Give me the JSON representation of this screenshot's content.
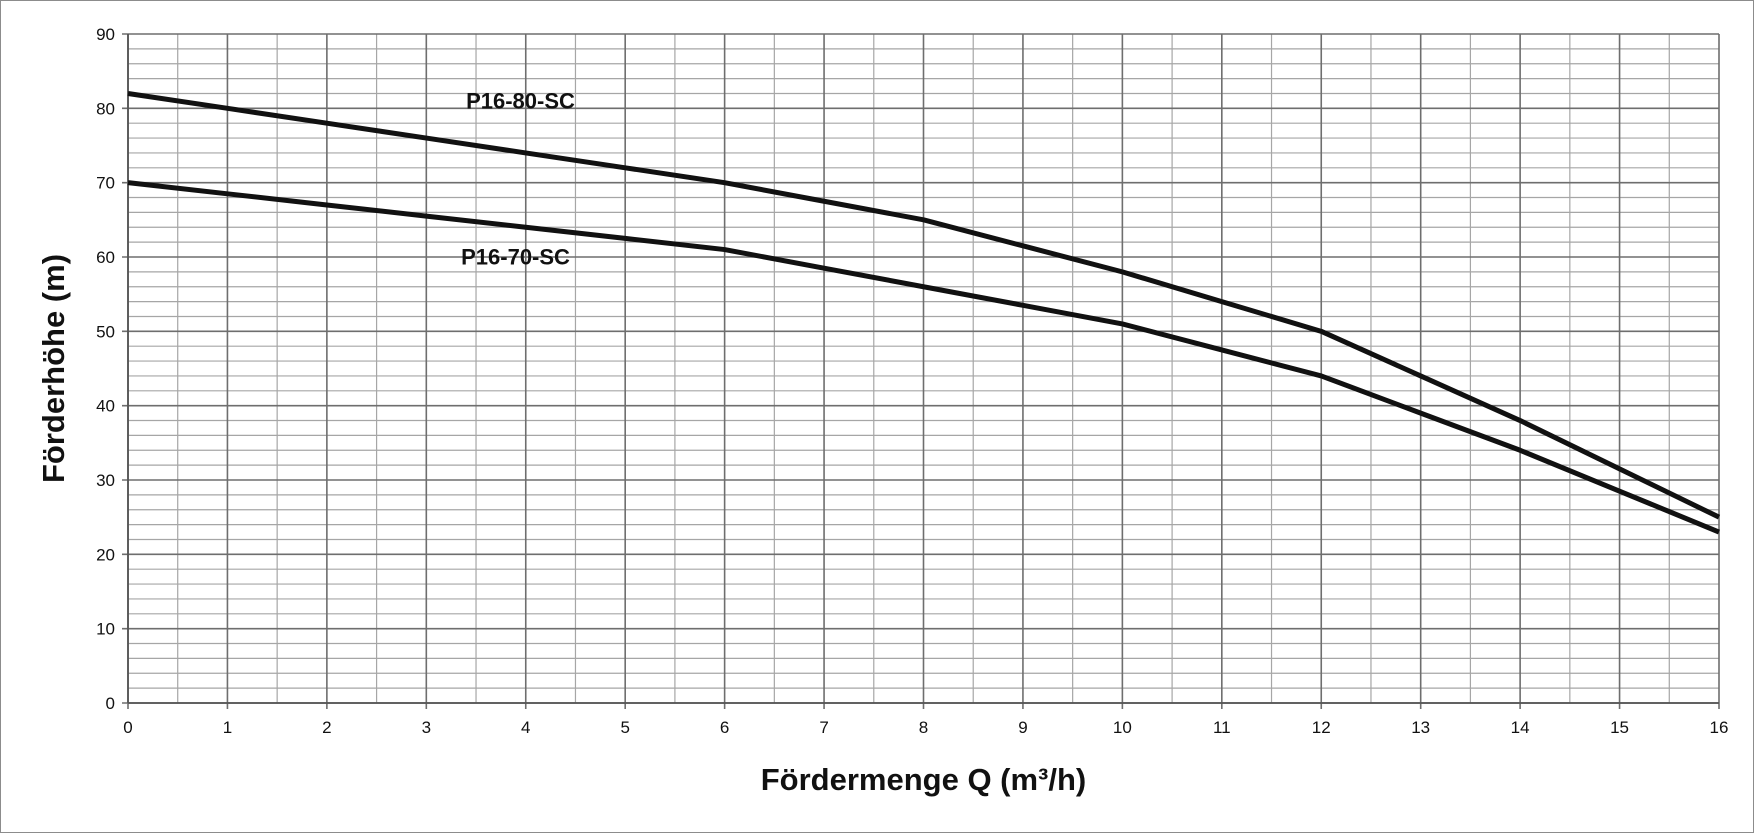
{
  "chart_data": {
    "type": "line",
    "title": "",
    "xlabel": "Fördermenge Q (m³/h)",
    "ylabel": "Förderhöhe (m)",
    "xlim": [
      0,
      16
    ],
    "ylim": [
      0,
      90
    ],
    "x_ticks": [
      0,
      1,
      2,
      3,
      4,
      5,
      6,
      7,
      8,
      9,
      10,
      11,
      12,
      13,
      14,
      15,
      16
    ],
    "y_ticks": [
      0,
      10,
      20,
      30,
      40,
      50,
      60,
      70,
      80,
      90
    ],
    "x_minor_step": 0.5,
    "y_minor_step": 2,
    "grid": true,
    "line_color": "#111111",
    "series": [
      {
        "name": "P16-80-SC",
        "x": [
          0,
          1,
          2,
          3,
          4,
          5,
          6,
          7,
          8,
          9,
          10,
          11,
          12,
          13,
          14,
          15,
          16
        ],
        "y": [
          82,
          80,
          78,
          76,
          74,
          72,
          70,
          67.5,
          65,
          61.5,
          58,
          54,
          50,
          44,
          38,
          31.5,
          25
        ]
      },
      {
        "name": "P16-70-SC",
        "x": [
          0,
          1,
          2,
          3,
          4,
          5,
          6,
          7,
          8,
          9,
          10,
          11,
          12,
          13,
          14,
          15,
          16
        ],
        "y": [
          70,
          68.5,
          67,
          65.5,
          64,
          62.5,
          61,
          58.5,
          56,
          53.5,
          51,
          47.5,
          44,
          39,
          34,
          28.5,
          23
        ]
      }
    ],
    "annotations": [
      {
        "text": "P16-80-SC",
        "series": "P16-80-SC",
        "x": 3.4,
        "y": 80
      },
      {
        "text": "P16-70-SC",
        "series": "P16-70-SC",
        "x": 3.35,
        "y": 59
      }
    ]
  }
}
